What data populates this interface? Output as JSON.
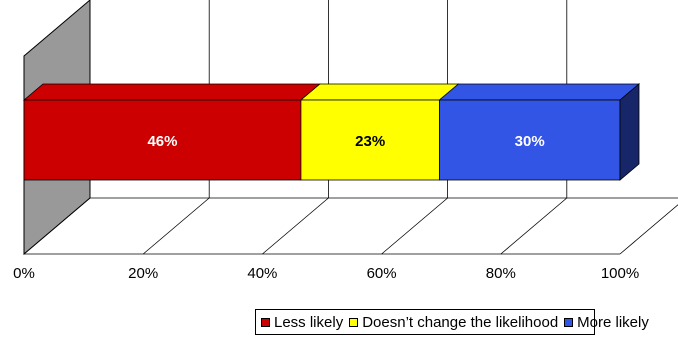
{
  "chart_data": {
    "type": "bar",
    "orientation": "horizontal-stacked-3d",
    "categories": [
      ""
    ],
    "series": [
      {
        "name": "Less likely",
        "values": [
          46
        ],
        "label": "46%",
        "color": "#CC0000"
      },
      {
        "name": "Doesn’t change the likelihood",
        "values": [
          23
        ],
        "label": "23%",
        "color": "#FFFF00"
      },
      {
        "name": "More likely",
        "values": [
          30
        ],
        "label": "30%",
        "color": "#3355E6"
      }
    ],
    "x_ticks": [
      "0%",
      "20%",
      "40%",
      "60%",
      "80%",
      "100%"
    ],
    "xlim": [
      0,
      100
    ],
    "grid": true,
    "legend_position": "bottom"
  }
}
